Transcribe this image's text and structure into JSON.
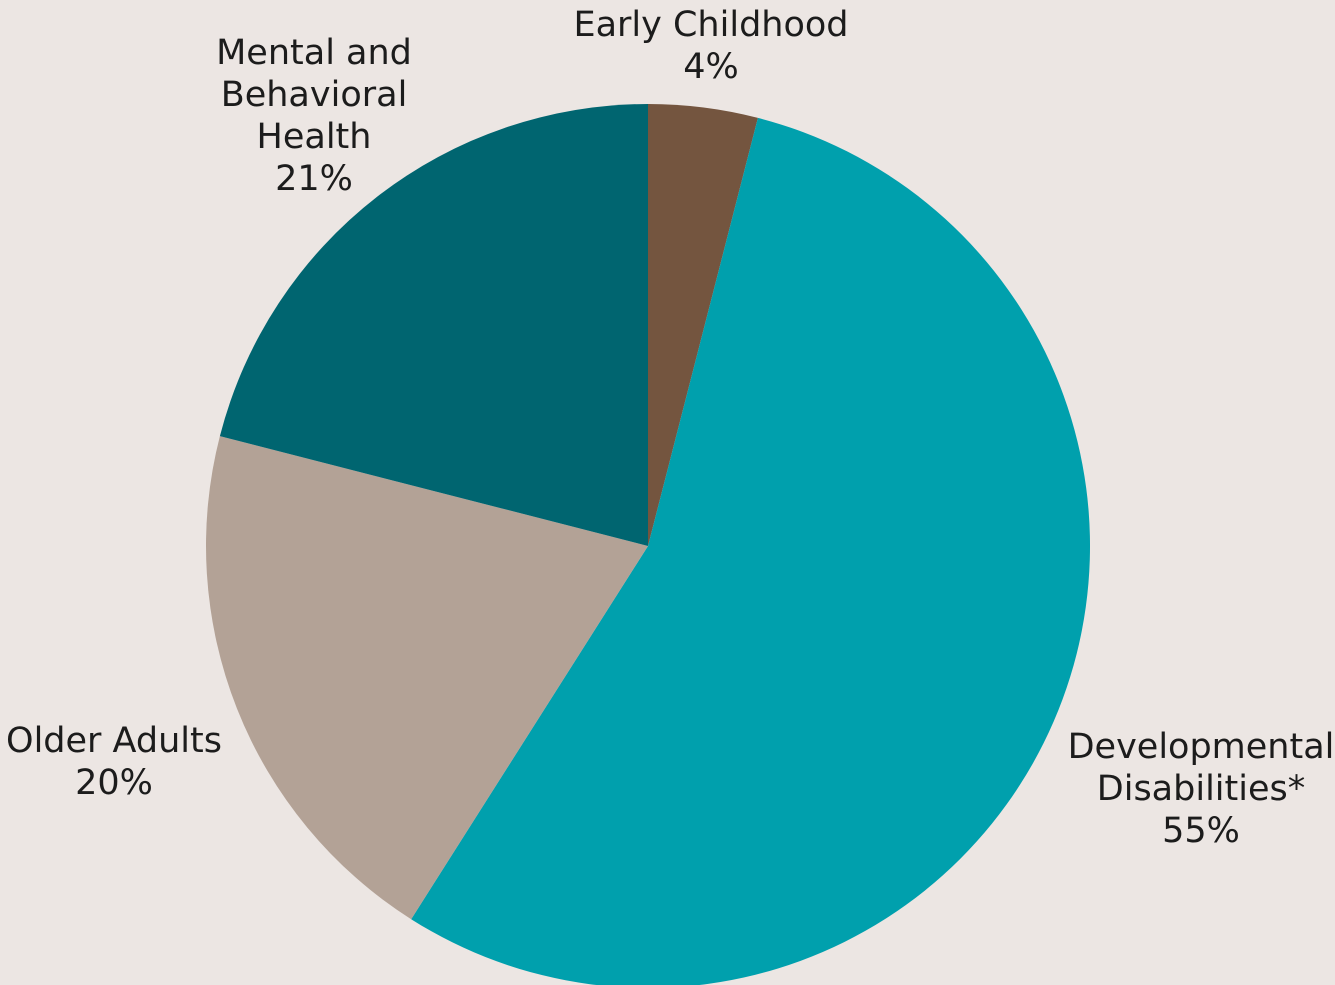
{
  "chart_data": {
    "type": "pie",
    "slices": [
      {
        "label": [
          "Early Childhood"
        ],
        "value": 4,
        "value_label": "4%",
        "color": "#74553f"
      },
      {
        "label": [
          "Developmental",
          "Disabilities*"
        ],
        "value": 55,
        "value_label": "55%",
        "color": "#00a0ad"
      },
      {
        "label": [
          "Older Adults"
        ],
        "value": 20,
        "value_label": "20%",
        "color": "#b3a296"
      },
      {
        "label": [
          "Mental and",
          "Behavioral",
          "Health"
        ],
        "value": 21,
        "value_label": "21%",
        "color": "#006570"
      }
    ],
    "start": "12 o'clock",
    "direction": "clockwise",
    "background": "#ece6e3"
  }
}
